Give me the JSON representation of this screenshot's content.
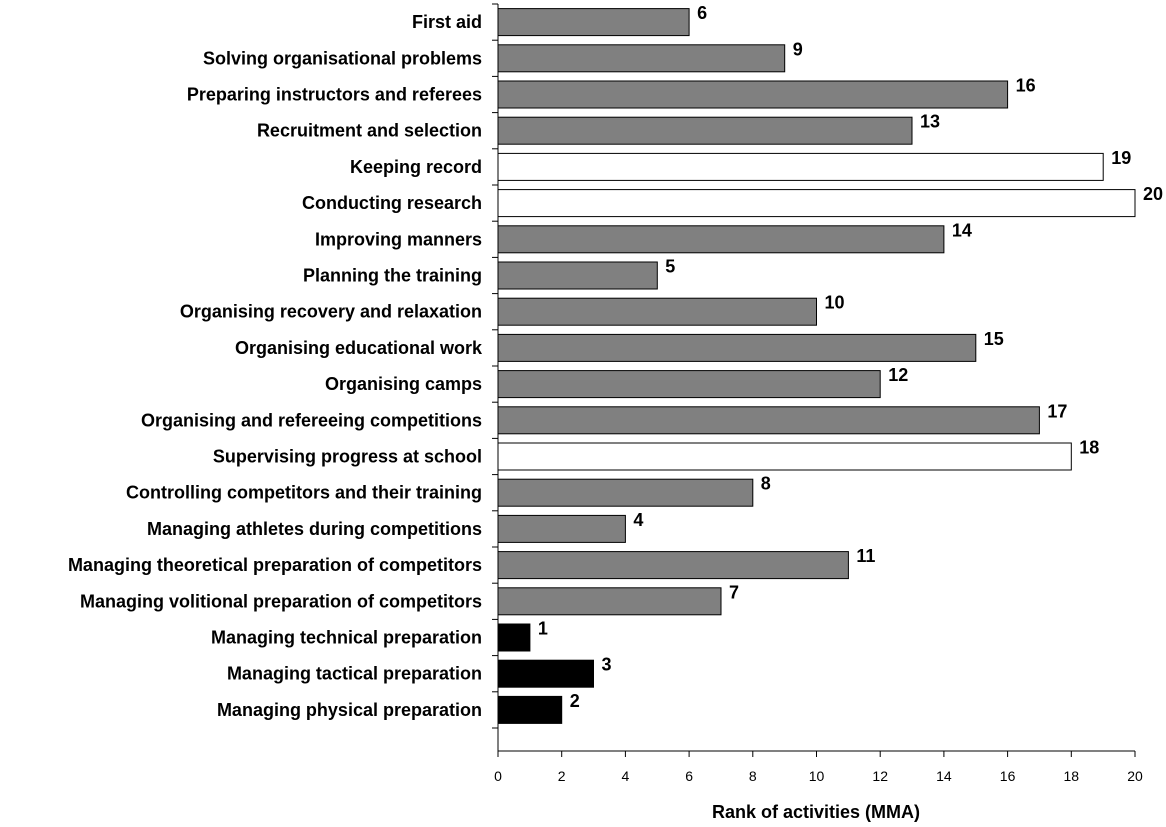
{
  "chart_data": {
    "type": "bar",
    "orientation": "horizontal",
    "categories": [
      "First aid",
      "Solving organisational problems",
      "Preparing instructors and referees",
      "Recruitment and selection",
      "Keeping record",
      "Conducting research",
      "Improving manners",
      "Planning the training",
      "Organising recovery and relaxation",
      "Organising educational work",
      "Organising camps",
      "Organising and refereeing competitions",
      "Supervising progress at school",
      "Controlling competitors and their training",
      "Managing athletes during competitions",
      "Managing theoretical preparation of competitors",
      "Managing volitional preparation of competitors",
      "Managing technical preparation",
      "Managing tactical preparation",
      "Managing physical preparation"
    ],
    "values": [
      6,
      9,
      16,
      13,
      19,
      20,
      14,
      5,
      10,
      15,
      12,
      17,
      18,
      8,
      4,
      11,
      7,
      1,
      3,
      2
    ],
    "value_labels": [
      "6",
      "9",
      "16",
      "13",
      "19",
      "20",
      "14",
      "5",
      "10",
      "15",
      "12",
      "17",
      "18",
      "8",
      "4",
      "11",
      "7",
      "1",
      "3",
      "2"
    ],
    "bar_colors": [
      "#808080",
      "#808080",
      "#808080",
      "#808080",
      "#ffffff",
      "#ffffff",
      "#808080",
      "#808080",
      "#808080",
      "#808080",
      "#808080",
      "#808080",
      "#ffffff",
      "#808080",
      "#808080",
      "#808080",
      "#808080",
      "#000000",
      "#000000",
      "#000000"
    ],
    "xlabel": "Rank of activities (MMA)",
    "xlim": [
      0,
      20
    ],
    "xticks": [
      0,
      2,
      4,
      6,
      8,
      10,
      12,
      14,
      16,
      18,
      20
    ],
    "xtick_labels": [
      "0",
      "2",
      "4",
      "6",
      "8",
      "10",
      "12",
      "14",
      "16",
      "18",
      "20"
    ],
    "grid": false,
    "legend": "none"
  }
}
